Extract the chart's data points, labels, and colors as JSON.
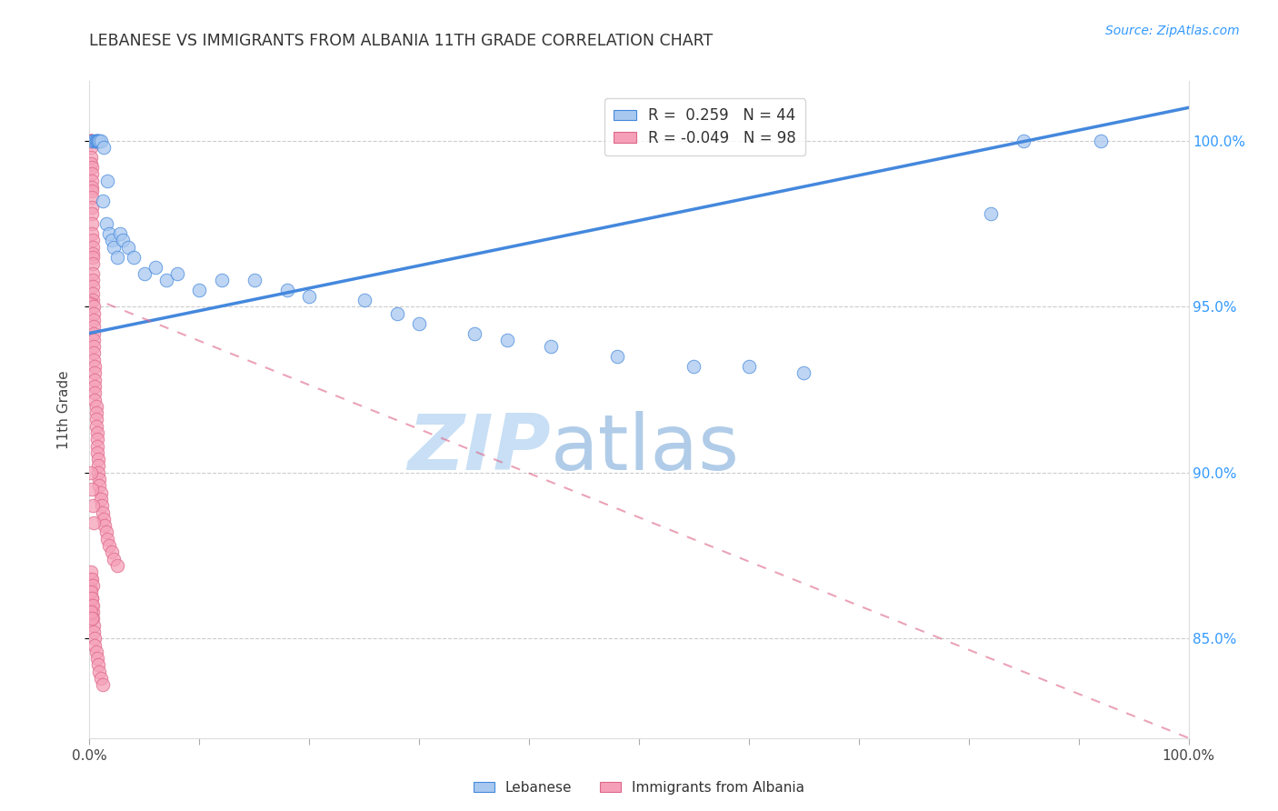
{
  "title": "LEBANESE VS IMMIGRANTS FROM ALBANIA 11TH GRADE CORRELATION CHART",
  "source": "Source: ZipAtlas.com",
  "ylabel": "11th Grade",
  "y_tick_labels": [
    "100.0%",
    "95.0%",
    "90.0%",
    "85.0%"
  ],
  "y_tick_values": [
    1.0,
    0.95,
    0.9,
    0.85
  ],
  "x_tick_values": [
    0.0,
    0.1,
    0.2,
    0.3,
    0.4,
    0.5,
    0.6,
    0.7,
    0.8,
    0.9,
    1.0
  ],
  "legend_R_blue": "0.259",
  "legend_N_blue": "44",
  "legend_R_pink": "-0.049",
  "legend_N_pink": "98",
  "blue_label": "Lebanese",
  "pink_label": "Immigrants from Albania",
  "blue_color": "#a8c8f0",
  "pink_color": "#f5a0b8",
  "blue_line_color": "#4488dd",
  "pink_line_color": "#dd6688",
  "watermark_zip": "ZIP",
  "watermark_atlas": "atlas",
  "watermark_color_zip": "#c8dff5",
  "watermark_color_atlas": "#b0cce8",
  "blue_scatter_x": [
    0.003,
    0.005,
    0.006,
    0.006,
    0.006,
    0.007,
    0.008,
    0.008,
    0.009,
    0.01,
    0.012,
    0.013,
    0.015,
    0.016,
    0.018,
    0.02,
    0.022,
    0.025,
    0.028,
    0.03,
    0.035,
    0.04,
    0.05,
    0.06,
    0.07,
    0.08,
    0.1,
    0.12,
    0.15,
    0.18,
    0.2,
    0.25,
    0.28,
    0.3,
    0.35,
    0.38,
    0.42,
    0.48,
    0.55,
    0.6,
    0.65,
    0.82,
    0.85,
    0.92
  ],
  "blue_scatter_y": [
    1.0,
    1.0,
    1.0,
    1.0,
    1.0,
    1.0,
    1.0,
    1.0,
    1.0,
    1.0,
    0.982,
    0.998,
    0.975,
    0.988,
    0.972,
    0.97,
    0.968,
    0.965,
    0.972,
    0.97,
    0.968,
    0.965,
    0.96,
    0.962,
    0.958,
    0.96,
    0.955,
    0.958,
    0.958,
    0.955,
    0.953,
    0.952,
    0.948,
    0.945,
    0.942,
    0.94,
    0.938,
    0.935,
    0.932,
    0.932,
    0.93,
    0.978,
    1.0,
    1.0
  ],
  "pink_scatter_x": [
    0.001,
    0.001,
    0.001,
    0.001,
    0.001,
    0.001,
    0.001,
    0.001,
    0.001,
    0.001,
    0.002,
    0.002,
    0.002,
    0.002,
    0.002,
    0.002,
    0.002,
    0.002,
    0.002,
    0.002,
    0.003,
    0.003,
    0.003,
    0.003,
    0.003,
    0.003,
    0.003,
    0.003,
    0.003,
    0.003,
    0.004,
    0.004,
    0.004,
    0.004,
    0.004,
    0.004,
    0.004,
    0.004,
    0.004,
    0.005,
    0.005,
    0.005,
    0.005,
    0.005,
    0.005,
    0.006,
    0.006,
    0.006,
    0.006,
    0.007,
    0.007,
    0.007,
    0.007,
    0.008,
    0.008,
    0.008,
    0.009,
    0.009,
    0.01,
    0.01,
    0.011,
    0.012,
    0.013,
    0.014,
    0.015,
    0.016,
    0.018,
    0.02,
    0.022,
    0.025,
    0.001,
    0.001,
    0.002,
    0.002,
    0.003,
    0.003,
    0.004,
    0.004,
    0.005,
    0.005,
    0.006,
    0.007,
    0.008,
    0.009,
    0.01,
    0.012,
    0.001,
    0.002,
    0.003,
    0.004,
    0.001,
    0.002,
    0.003,
    0.001,
    0.002,
    0.003,
    0.001,
    0.002
  ],
  "pink_scatter_y": [
    1.0,
    1.0,
    1.0,
    1.0,
    1.0,
    1.0,
    1.0,
    0.998,
    0.995,
    0.993,
    0.992,
    0.99,
    0.988,
    0.986,
    0.985,
    0.983,
    0.98,
    0.978,
    0.975,
    0.972,
    0.97,
    0.968,
    0.966,
    0.965,
    0.963,
    0.96,
    0.958,
    0.956,
    0.954,
    0.952,
    0.95,
    0.948,
    0.946,
    0.944,
    0.942,
    0.94,
    0.938,
    0.936,
    0.934,
    0.932,
    0.93,
    0.928,
    0.926,
    0.924,
    0.922,
    0.92,
    0.918,
    0.916,
    0.914,
    0.912,
    0.91,
    0.908,
    0.906,
    0.904,
    0.902,
    0.9,
    0.898,
    0.896,
    0.894,
    0.892,
    0.89,
    0.888,
    0.886,
    0.884,
    0.882,
    0.88,
    0.878,
    0.876,
    0.874,
    0.872,
    0.868,
    0.865,
    0.862,
    0.86,
    0.858,
    0.856,
    0.854,
    0.852,
    0.85,
    0.848,
    0.846,
    0.844,
    0.842,
    0.84,
    0.838,
    0.836,
    0.9,
    0.895,
    0.89,
    0.885,
    0.87,
    0.868,
    0.866,
    0.864,
    0.862,
    0.86,
    0.858,
    0.856
  ],
  "ylim_min": 0.82,
  "ylim_max": 1.018
}
